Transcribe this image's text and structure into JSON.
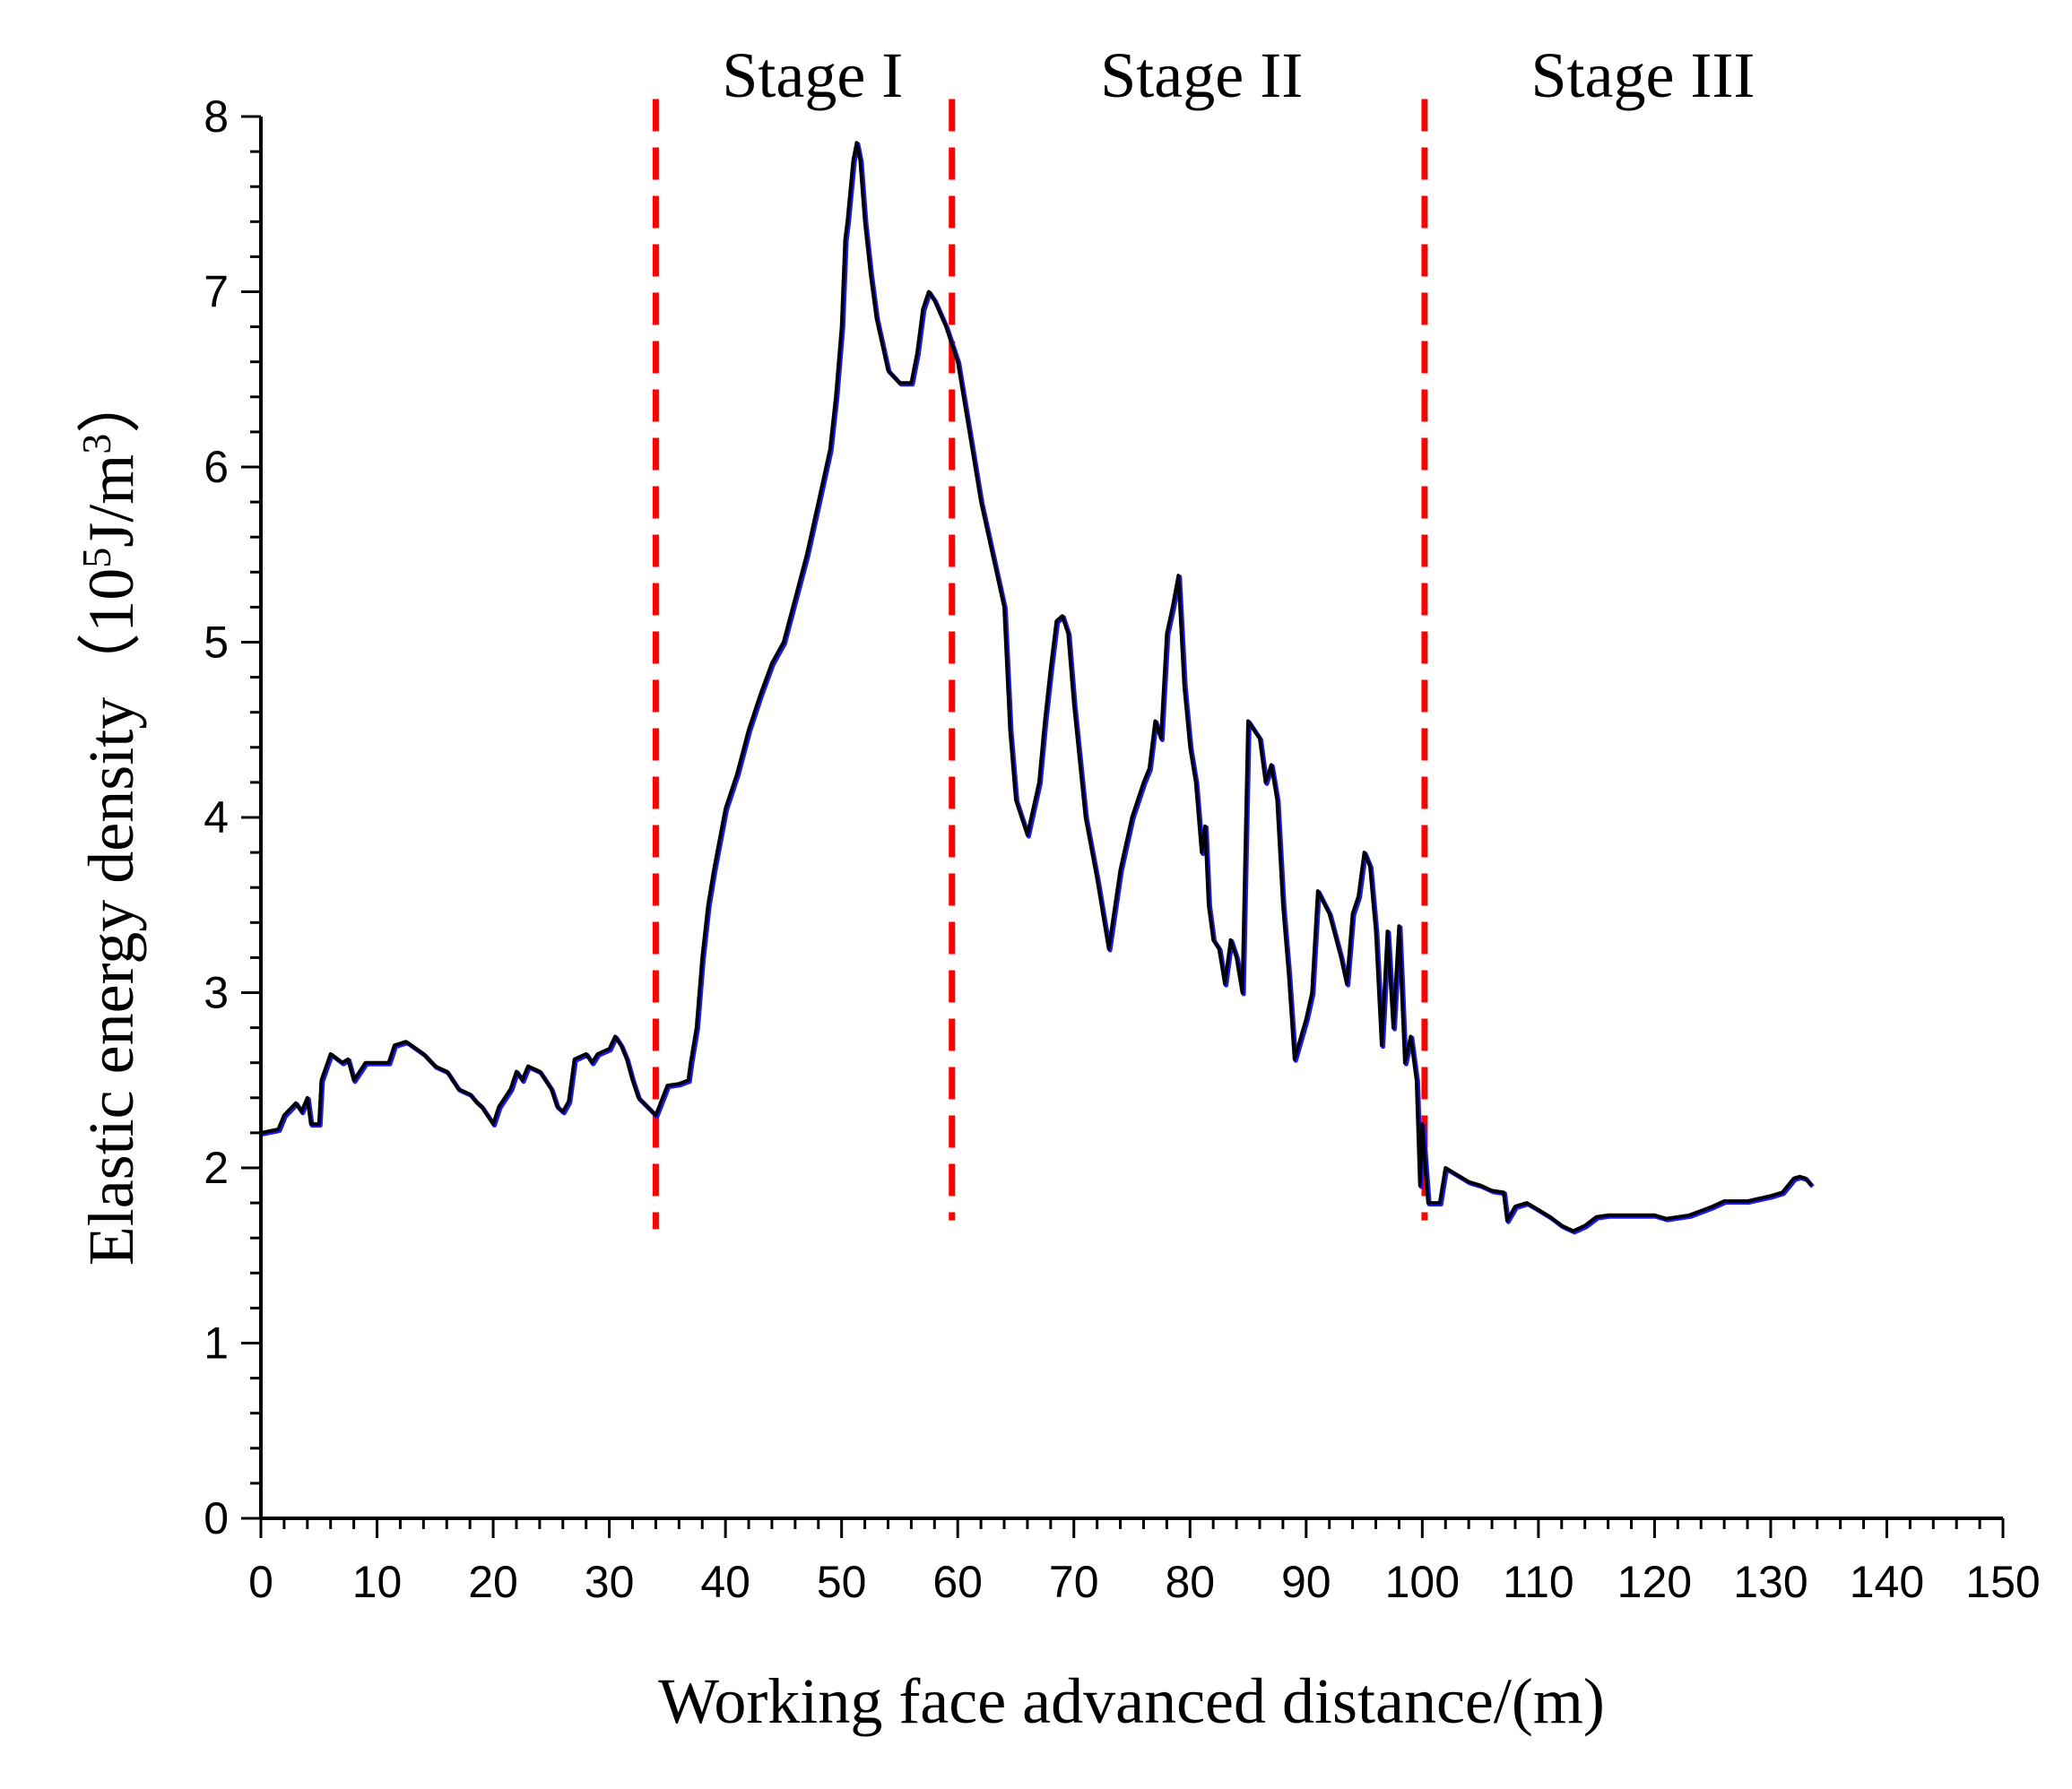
{
  "chart_data": {
    "type": "line",
    "title": "",
    "xlabel": "Working face advanced distance/(m)",
    "ylabel": {
      "prefix": "Elastic energy density",
      "open_paren": "（",
      "base": "10",
      "exp": "5",
      "unit": "J/m",
      "unit_exp": "3",
      "close_paren": "）"
    },
    "xlim": [
      0,
      150
    ],
    "ylim": [
      0,
      8
    ],
    "x_ticks": [
      0,
      10,
      20,
      30,
      40,
      50,
      60,
      70,
      80,
      90,
      100,
      110,
      120,
      130,
      140,
      150
    ],
    "y_ticks": [
      0,
      1,
      2,
      3,
      4,
      5,
      6,
      7,
      8
    ],
    "grid": false,
    "legend": "none",
    "colors": {
      "line": "#000000",
      "line_shadow": "#1a1aff",
      "divider": "#ff0000"
    },
    "dividers": [
      {
        "x": 34,
        "y_range": [
          1.65,
          8.1
        ]
      },
      {
        "x": 59.5,
        "y_range": [
          1.7,
          8.1
        ]
      },
      {
        "x": 100.2,
        "y_range": [
          1.7,
          8.1
        ]
      }
    ],
    "stage_labels": [
      {
        "text": "Stage I",
        "x": 47.5
      },
      {
        "text": "Stage II",
        "x": 81
      },
      {
        "text": "Stage III",
        "x": 119
      }
    ],
    "series": [
      {
        "name": "Elastic energy density",
        "points": [
          [
            0,
            2.2
          ],
          [
            1.5,
            2.22
          ],
          [
            2,
            2.3
          ],
          [
            3,
            2.37
          ],
          [
            3.5,
            2.32
          ],
          [
            4,
            2.4
          ],
          [
            4.3,
            2.25
          ],
          [
            5,
            2.25
          ],
          [
            5.2,
            2.5
          ],
          [
            6,
            2.65
          ],
          [
            7,
            2.6
          ],
          [
            7.5,
            2.62
          ],
          [
            8,
            2.5
          ],
          [
            9,
            2.6
          ],
          [
            10,
            2.6
          ],
          [
            11,
            2.6
          ],
          [
            11.5,
            2.7
          ],
          [
            12.5,
            2.72
          ],
          [
            14,
            2.65
          ],
          [
            15,
            2.58
          ],
          [
            16,
            2.55
          ],
          [
            17,
            2.45
          ],
          [
            18,
            2.42
          ],
          [
            18.5,
            2.38
          ],
          [
            19,
            2.35
          ],
          [
            20,
            2.25
          ],
          [
            20.5,
            2.35
          ],
          [
            21,
            2.4
          ],
          [
            21.5,
            2.45
          ],
          [
            22,
            2.55
          ],
          [
            22.5,
            2.5
          ],
          [
            23,
            2.58
          ],
          [
            24,
            2.55
          ],
          [
            25,
            2.45
          ],
          [
            25.5,
            2.35
          ],
          [
            26,
            2.32
          ],
          [
            26.5,
            2.38
          ],
          [
            27,
            2.62
          ],
          [
            28,
            2.65
          ],
          [
            28.5,
            2.6
          ],
          [
            29,
            2.65
          ],
          [
            30,
            2.68
          ],
          [
            30.5,
            2.75
          ],
          [
            31,
            2.7
          ],
          [
            31.5,
            2.62
          ],
          [
            32,
            2.5
          ],
          [
            32.5,
            2.4
          ],
          [
            34,
            2.3
          ],
          [
            35,
            2.47
          ],
          [
            36,
            2.48
          ],
          [
            36.8,
            2.5
          ],
          [
            37,
            2.6
          ],
          [
            37.5,
            2.8
          ],
          [
            38,
            3.2
          ],
          [
            38.5,
            3.5
          ],
          [
            39,
            3.7
          ],
          [
            40,
            4.05
          ],
          [
            41,
            4.25
          ],
          [
            42,
            4.5
          ],
          [
            43,
            4.7
          ],
          [
            44,
            4.88
          ],
          [
            45,
            5.0
          ],
          [
            46,
            5.25
          ],
          [
            47,
            5.5
          ],
          [
            48,
            5.8
          ],
          [
            49,
            6.1
          ],
          [
            49.5,
            6.4
          ],
          [
            50,
            6.8
          ],
          [
            50.3,
            7.3
          ],
          [
            50.5,
            7.4
          ],
          [
            51,
            7.75
          ],
          [
            51.3,
            7.85
          ],
          [
            51.6,
            7.75
          ],
          [
            52,
            7.4
          ],
          [
            52.5,
            7.1
          ],
          [
            53,
            6.85
          ],
          [
            54,
            6.55
          ],
          [
            55,
            6.48
          ],
          [
            56,
            6.48
          ],
          [
            56.5,
            6.65
          ],
          [
            57,
            6.9
          ],
          [
            57.5,
            7.0
          ],
          [
            58,
            6.95
          ],
          [
            59,
            6.8
          ],
          [
            60,
            6.6
          ],
          [
            60.5,
            6.4
          ],
          [
            61,
            6.2
          ],
          [
            62,
            5.8
          ],
          [
            63,
            5.5
          ],
          [
            64,
            5.2
          ],
          [
            64.5,
            4.5
          ],
          [
            65,
            4.1
          ],
          [
            66,
            3.9
          ],
          [
            66.5,
            4.05
          ],
          [
            67,
            4.2
          ],
          [
            67.5,
            4.55
          ],
          [
            68,
            4.85
          ],
          [
            68.5,
            5.12
          ],
          [
            69,
            5.15
          ],
          [
            69.5,
            5.05
          ],
          [
            70,
            4.65
          ],
          [
            71,
            4.0
          ],
          [
            72,
            3.65
          ],
          [
            73,
            3.25
          ],
          [
            74,
            3.7
          ],
          [
            75,
            4.0
          ],
          [
            76,
            4.2
          ],
          [
            76.5,
            4.28
          ],
          [
            77,
            4.55
          ],
          [
            77.5,
            4.45
          ],
          [
            78,
            5.05
          ],
          [
            78.5,
            5.2
          ],
          [
            79,
            5.38
          ],
          [
            79.5,
            4.75
          ],
          [
            80,
            4.4
          ],
          [
            80.5,
            4.2
          ],
          [
            81,
            3.8
          ],
          [
            81.3,
            3.95
          ],
          [
            81.6,
            3.5
          ],
          [
            82,
            3.3
          ],
          [
            82.5,
            3.25
          ],
          [
            83,
            3.05
          ],
          [
            83.5,
            3.3
          ],
          [
            84,
            3.2
          ],
          [
            84.5,
            3.0
          ],
          [
            85,
            4.55
          ],
          [
            86,
            4.45
          ],
          [
            86.5,
            4.2
          ],
          [
            87,
            4.3
          ],
          [
            87.5,
            4.1
          ],
          [
            88,
            3.5
          ],
          [
            88.5,
            3.1
          ],
          [
            89,
            2.62
          ],
          [
            90,
            2.85
          ],
          [
            90.5,
            3.0
          ],
          [
            91,
            3.58
          ],
          [
            92,
            3.45
          ],
          [
            93,
            3.2
          ],
          [
            93.5,
            3.05
          ],
          [
            94,
            3.45
          ],
          [
            94.5,
            3.55
          ],
          [
            95,
            3.8
          ],
          [
            95.5,
            3.72
          ],
          [
            96,
            3.35
          ],
          [
            96.5,
            2.7
          ],
          [
            97,
            3.35
          ],
          [
            97.5,
            2.8
          ],
          [
            98,
            3.38
          ],
          [
            98.5,
            2.6
          ],
          [
            99,
            2.75
          ],
          [
            99.5,
            2.5
          ],
          [
            99.8,
            1.9
          ],
          [
            100,
            2.25
          ],
          [
            100.5,
            1.8
          ],
          [
            101.5,
            1.8
          ],
          [
            102,
            2.0
          ],
          [
            103,
            1.96
          ],
          [
            104,
            1.92
          ],
          [
            105,
            1.9
          ],
          [
            106,
            1.87
          ],
          [
            107,
            1.86
          ],
          [
            107.3,
            1.7
          ],
          [
            108,
            1.78
          ],
          [
            109,
            1.8
          ],
          [
            110,
            1.76
          ],
          [
            111,
            1.72
          ],
          [
            112,
            1.67
          ],
          [
            113,
            1.64
          ],
          [
            114,
            1.67
          ],
          [
            115,
            1.72
          ],
          [
            116,
            1.73
          ],
          [
            120,
            1.73
          ],
          [
            121,
            1.71
          ],
          [
            123,
            1.73
          ],
          [
            125,
            1.78
          ],
          [
            126,
            1.81
          ],
          [
            128,
            1.81
          ],
          [
            130,
            1.84
          ],
          [
            131,
            1.86
          ],
          [
            132,
            1.94
          ],
          [
            132.5,
            1.95
          ],
          [
            133,
            1.94
          ],
          [
            133.5,
            1.9
          ]
        ]
      }
    ]
  }
}
